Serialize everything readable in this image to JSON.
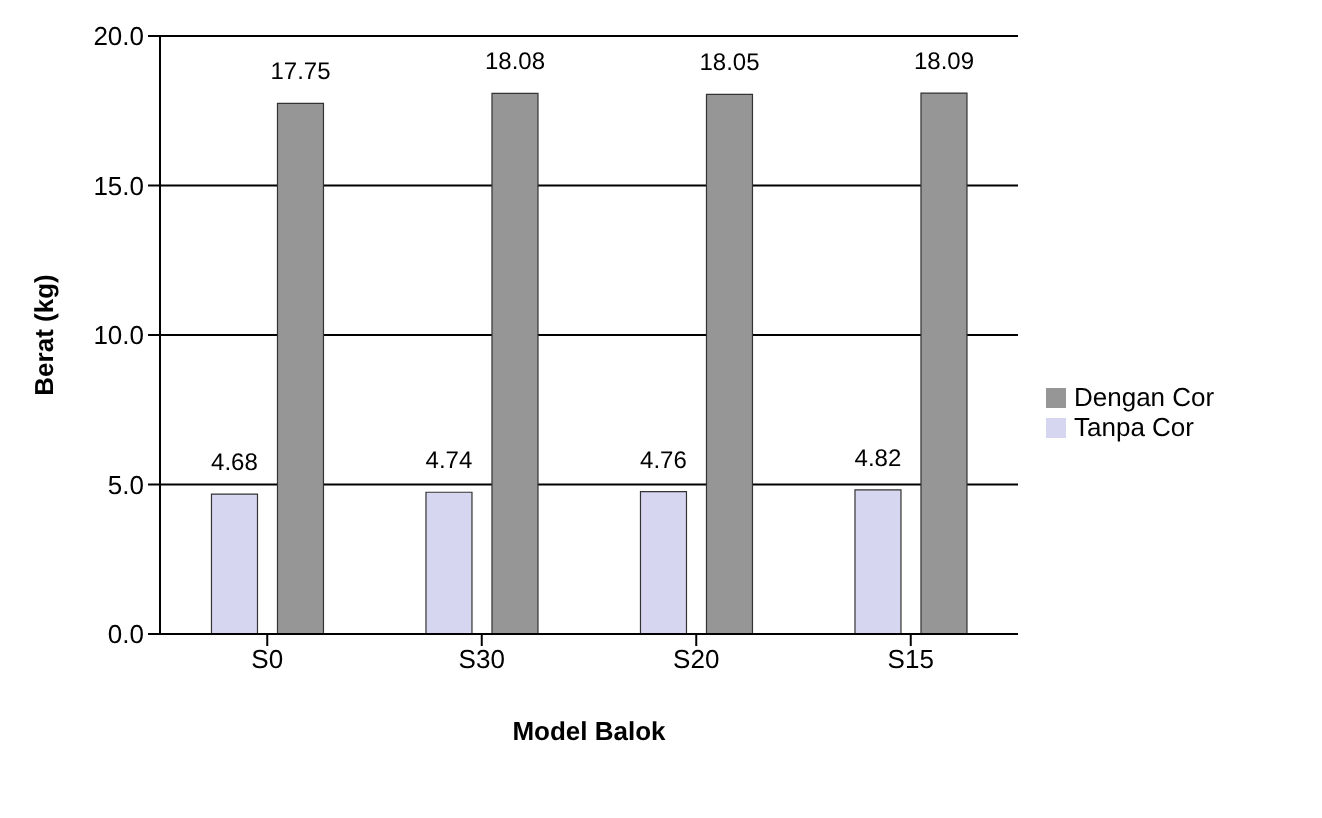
{
  "chart_data": {
    "type": "bar",
    "xlabel": "Model Balok",
    "ylabel": "Berat (kg)",
    "categories": [
      "S0",
      "S30",
      "S20",
      "S15"
    ],
    "series": [
      {
        "name": "Tanpa Cor",
        "color": "#d6d6f0",
        "values": [
          4.68,
          4.74,
          4.76,
          4.82
        ]
      },
      {
        "name": "Dengan Cor",
        "color": "#969696",
        "values": [
          17.75,
          18.08,
          18.05,
          18.09
        ]
      }
    ],
    "ylim": [
      0,
      20
    ],
    "yticks": [
      {
        "value": 0,
        "label": "0.0"
      },
      {
        "value": 5,
        "label": "5.0"
      },
      {
        "value": 10,
        "label": "10.0"
      },
      {
        "value": 15,
        "label": "15.0"
      },
      {
        "value": 20,
        "label": "20.0"
      }
    ],
    "grid": "y",
    "legend": "right",
    "data_labels": true
  }
}
